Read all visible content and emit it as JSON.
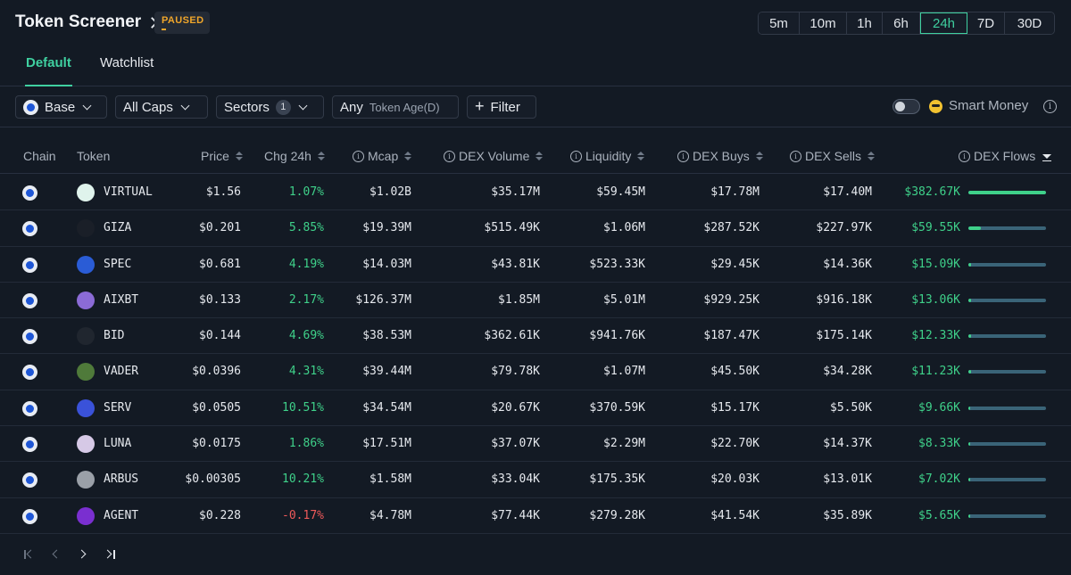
{
  "header": {
    "title": "Token Screener",
    "status_badge": "PAUSED",
    "timeframes": [
      "5m",
      "10m",
      "1h",
      "6h",
      "24h",
      "7D",
      "30D"
    ],
    "active_timeframe": "24h"
  },
  "tabs": [
    {
      "label": "Default",
      "active": true
    },
    {
      "label": "Watchlist",
      "active": false
    }
  ],
  "filters": {
    "chain": "Base",
    "caps": "All Caps",
    "sectors": "Sectors",
    "sectors_count": "1",
    "age_value": "Any",
    "age_label": "Token Age(D)",
    "filter_button": "Filter",
    "smart_money_label": "Smart Money",
    "smart_money_enabled": false
  },
  "table": {
    "columns": [
      "Chain",
      "Token",
      "Price",
      "Chg 24h",
      "Mcap",
      "DEX Volume",
      "Liquidity",
      "DEX Buys",
      "DEX Sells",
      "DEX Flows"
    ],
    "rows": [
      {
        "token": "VIRTUAL",
        "price": "$1.56",
        "chg": "1.07%",
        "chg_dir": "up",
        "mcap": "$1.02B",
        "volume": "$35.17M",
        "liquidity": "$59.45M",
        "buys": "$17.78M",
        "sells": "$17.40M",
        "flows": "$382.67K",
        "flow_pct": 1.0,
        "icon_color": "#dff3ec"
      },
      {
        "token": "GIZA",
        "price": "$0.201",
        "chg": "5.85%",
        "chg_dir": "up",
        "mcap": "$19.39M",
        "volume": "$515.49K",
        "liquidity": "$1.06M",
        "buys": "$287.52K",
        "sells": "$227.97K",
        "flows": "$59.55K",
        "flow_pct": 0.156,
        "icon_color": "#1a1f28"
      },
      {
        "token": "SPEC",
        "price": "$0.681",
        "chg": "4.19%",
        "chg_dir": "up",
        "mcap": "$14.03M",
        "volume": "$43.81K",
        "liquidity": "$523.33K",
        "buys": "$29.45K",
        "sells": "$14.36K",
        "flows": "$15.09K",
        "flow_pct": 0.04,
        "icon_color": "#2a5cd6"
      },
      {
        "token": "AIXBT",
        "price": "$0.133",
        "chg": "2.17%",
        "chg_dir": "up",
        "mcap": "$126.37M",
        "volume": "$1.85M",
        "liquidity": "$5.01M",
        "buys": "$929.25K",
        "sells": "$916.18K",
        "flows": "$13.06K",
        "flow_pct": 0.034,
        "icon_color": "#8b6bd6"
      },
      {
        "token": "BID",
        "price": "$0.144",
        "chg": "4.69%",
        "chg_dir": "up",
        "mcap": "$38.53M",
        "volume": "$362.61K",
        "liquidity": "$941.76K",
        "buys": "$187.47K",
        "sells": "$175.14K",
        "flows": "$12.33K",
        "flow_pct": 0.032,
        "icon_color": "#20262f"
      },
      {
        "token": "VADER",
        "price": "$0.0396",
        "chg": "4.31%",
        "chg_dir": "up",
        "mcap": "$39.44M",
        "volume": "$79.78K",
        "liquidity": "$1.07M",
        "buys": "$45.50K",
        "sells": "$34.28K",
        "flows": "$11.23K",
        "flow_pct": 0.029,
        "icon_color": "#4f7a3a"
      },
      {
        "token": "SERV",
        "price": "$0.0505",
        "chg": "10.51%",
        "chg_dir": "up",
        "mcap": "$34.54M",
        "volume": "$20.67K",
        "liquidity": "$370.59K",
        "buys": "$15.17K",
        "sells": "$5.50K",
        "flows": "$9.66K",
        "flow_pct": 0.025,
        "icon_color": "#3a52d9"
      },
      {
        "token": "LUNA",
        "price": "$0.0175",
        "chg": "1.86%",
        "chg_dir": "up",
        "mcap": "$17.51M",
        "volume": "$37.07K",
        "liquidity": "$2.29M",
        "buys": "$22.70K",
        "sells": "$14.37K",
        "flows": "$8.33K",
        "flow_pct": 0.022,
        "icon_color": "#d6c9e6"
      },
      {
        "token": "ARBUS",
        "price": "$0.00305",
        "chg": "10.21%",
        "chg_dir": "up",
        "mcap": "$1.58M",
        "volume": "$33.04K",
        "liquidity": "$175.35K",
        "buys": "$20.03K",
        "sells": "$13.01K",
        "flows": "$7.02K",
        "flow_pct": 0.018,
        "icon_color": "#9aa0a8"
      },
      {
        "token": "AGENT",
        "price": "$0.228",
        "chg": "-0.17%",
        "chg_dir": "down",
        "mcap": "$4.78M",
        "volume": "$77.44K",
        "liquidity": "$279.28K",
        "buys": "$41.54K",
        "sells": "$35.89K",
        "flows": "$5.65K",
        "flow_pct": 0.015,
        "icon_color": "#7a2fd0"
      }
    ]
  },
  "colors": {
    "accent": "#3fd0a0",
    "positive": "#3fd18a",
    "negative": "#ef5a5a",
    "paused": "#f0a62a",
    "background": "#131a24"
  }
}
